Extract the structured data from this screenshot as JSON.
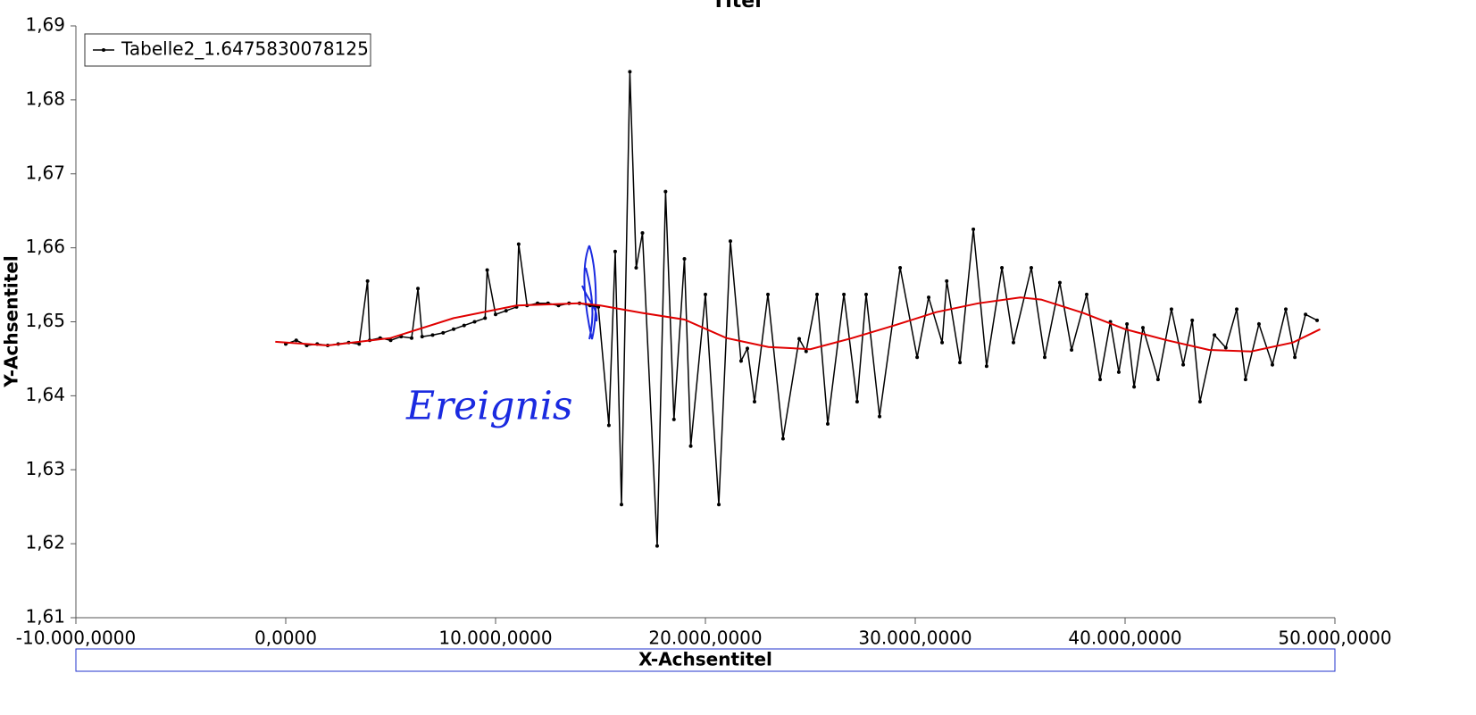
{
  "chart_data": {
    "type": "line",
    "title": "Titel",
    "x_label": "X-Achsentitel",
    "y_label": "Y-Achsentitel",
    "annotation": "Ereignis",
    "xlim": [
      -10000,
      50000
    ],
    "xticks": [
      {
        "value": -10000,
        "label": "-10.000,0000"
      },
      {
        "value": 0,
        "label": "0,0000"
      },
      {
        "value": 10000,
        "label": "10.000,0000"
      },
      {
        "value": 20000,
        "label": "20.000,0000"
      },
      {
        "value": 30000,
        "label": "30.000,0000"
      },
      {
        "value": 40000,
        "label": "40.000,0000"
      },
      {
        "value": 50000,
        "label": "50.000,0000"
      }
    ],
    "ylim": [
      1.61,
      1.69
    ],
    "yticks": [
      {
        "value": 1.61,
        "label": "1,61"
      },
      {
        "value": 1.62,
        "label": "1,62"
      },
      {
        "value": 1.63,
        "label": "1,63"
      },
      {
        "value": 1.64,
        "label": "1,64"
      },
      {
        "value": 1.65,
        "label": "1,65"
      },
      {
        "value": 1.66,
        "label": "1,66"
      },
      {
        "value": 1.67,
        "label": "1,67"
      },
      {
        "value": 1.68,
        "label": "1,68"
      },
      {
        "value": 1.69,
        "label": "1,69"
      }
    ],
    "legend": "top-left",
    "series": [
      {
        "name": "Tabelle2_1.6475830078125",
        "color": "#000000",
        "markers": true,
        "x": [
          0,
          500,
          1000,
          1500,
          2000,
          2500,
          3000,
          3500,
          3900,
          4000,
          4500,
          5000,
          5500,
          6000,
          6300,
          6500,
          7000,
          7500,
          8000,
          8500,
          9000,
          9500,
          9600,
          10000,
          10500,
          11000,
          11100,
          11500,
          12000,
          12500,
          13000,
          13500,
          14000,
          14500,
          14900,
          15400,
          15700,
          16000,
          16400,
          16700,
          17000,
          17700,
          18100,
          18500,
          19000,
          19300,
          20000,
          20640,
          21190,
          21700,
          22000,
          22340,
          22980,
          23700,
          24470,
          24800,
          25320,
          25830,
          26600,
          27230,
          27660,
          28300,
          29280,
          30090,
          30640,
          31280,
          31500,
          32130,
          32770,
          33400,
          34130,
          34680,
          35530,
          36170,
          36890,
          37450,
          38170,
          38810,
          39300,
          39700,
          40090,
          40430,
          40850,
          41570,
          42210,
          42770,
          43200,
          43570,
          44260,
          44800,
          45320,
          45740,
          46380,
          47020,
          47660,
          48090,
          48600,
          49150
        ],
        "values": [
          1.647,
          1.6475,
          1.6468,
          1.647,
          1.6468,
          1.647,
          1.6472,
          1.647,
          1.6555,
          1.6475,
          1.6478,
          1.6475,
          1.648,
          1.6478,
          1.6545,
          1.648,
          1.6482,
          1.6485,
          1.649,
          1.6495,
          1.65,
          1.6505,
          1.657,
          1.651,
          1.6515,
          1.652,
          1.6605,
          1.6522,
          1.6525,
          1.6525,
          1.6522,
          1.6525,
          1.6525,
          1.6522,
          1.652,
          1.636,
          1.6595,
          1.6253,
          1.6838,
          1.6573,
          1.662,
          1.6197,
          1.6676,
          1.6368,
          1.6585,
          1.6332,
          1.6537,
          1.6253,
          1.6609,
          1.6447,
          1.6464,
          1.6392,
          1.6537,
          1.6342,
          1.6477,
          1.646,
          1.6537,
          1.6362,
          1.6537,
          1.6392,
          1.6537,
          1.6372,
          1.6573,
          1.6452,
          1.6533,
          1.6472,
          1.6555,
          1.6445,
          1.6625,
          1.644,
          1.6573,
          1.6472,
          1.6573,
          1.6452,
          1.6553,
          1.6462,
          1.6537,
          1.6422,
          1.65,
          1.6432,
          1.6497,
          1.6412,
          1.6492,
          1.6422,
          1.6517,
          1.6442,
          1.6502,
          1.6392,
          1.6482,
          1.6465,
          1.6517,
          1.6422,
          1.6497,
          1.6442,
          1.6517,
          1.6452,
          1.651,
          1.6502
        ]
      },
      {
        "color": "#e00000",
        "markers": false,
        "x": [
          -500,
          2000,
          5000,
          8000,
          11000,
          14000,
          15000,
          17000,
          19000,
          21000,
          23000,
          25000,
          27000,
          29000,
          31000,
          33000,
          35000,
          36000,
          38000,
          40000,
          42000,
          44000,
          46000,
          48000,
          49300
        ],
        "values": [
          1.6473,
          1.6468,
          1.6478,
          1.6505,
          1.6522,
          1.6525,
          1.6522,
          1.6512,
          1.6503,
          1.6478,
          1.6466,
          1.6463,
          1.6478,
          1.6495,
          1.6513,
          1.6525,
          1.6533,
          1.653,
          1.6512,
          1.649,
          1.6475,
          1.6462,
          1.646,
          1.6472,
          1.649
        ]
      }
    ]
  }
}
